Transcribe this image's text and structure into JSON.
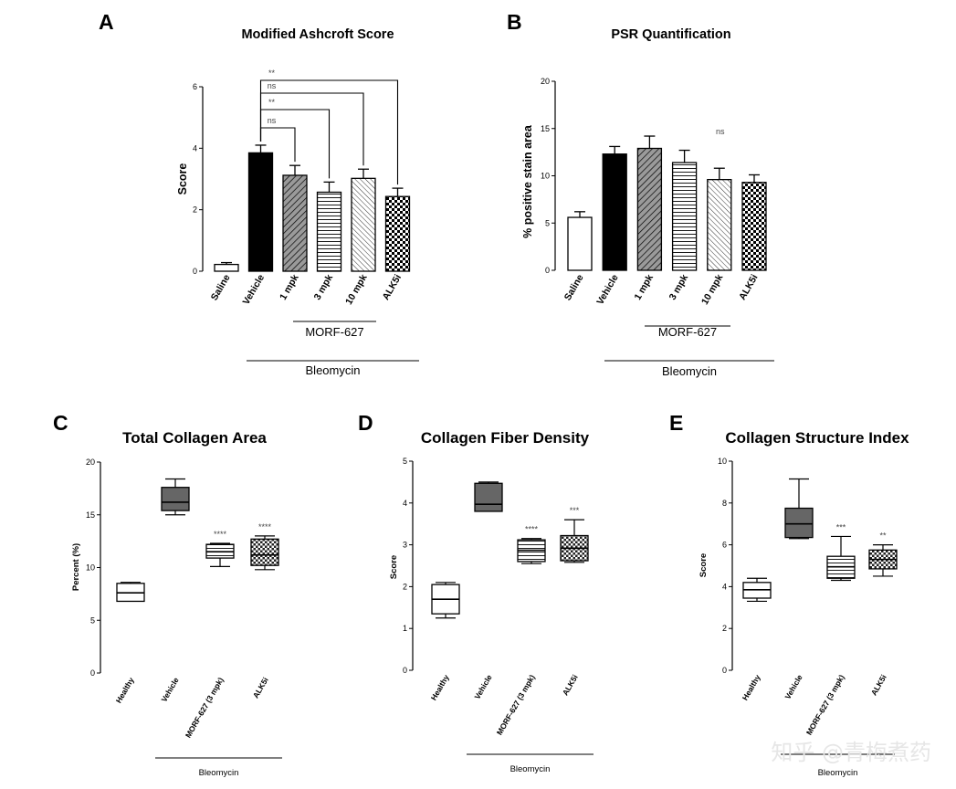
{
  "watermark": "知乎 @青梅煮药",
  "chart_data": [
    {
      "panel": "A",
      "type": "bar",
      "title": "Modified Ashcroft Score",
      "ylabel": "Score",
      "ylim": [
        0,
        6
      ],
      "yticks": [
        "0",
        "2",
        "4",
        "6"
      ],
      "categories": [
        "Saline",
        "Vehicle",
        "1 mpk",
        "3 mpk",
        "10 mpk",
        "ALK5i"
      ],
      "values": [
        0.22,
        3.85,
        3.12,
        2.57,
        3.02,
        2.43
      ],
      "errors": [
        0.06,
        0.25,
        0.32,
        0.33,
        0.3,
        0.27
      ],
      "group_labels": {
        "morf": "MORF-627",
        "bleo": "Bleomycin"
      },
      "comparisons": [
        {
          "to": "1 mpk",
          "label": "ns"
        },
        {
          "to": "3 mpk",
          "label": "**"
        },
        {
          "to": "10 mpk",
          "label": "ns"
        },
        {
          "to": "ALK5i",
          "label": "**"
        }
      ]
    },
    {
      "panel": "B",
      "type": "bar",
      "title": "PSR Quantification",
      "ylabel": "% positive stain area",
      "ylim": [
        0,
        20
      ],
      "yticks": [
        "0",
        "5",
        "10",
        "15",
        "20"
      ],
      "categories": [
        "Saline",
        "Vehicle",
        "1 mpk",
        "3 mpk",
        "10 mpk",
        "ALK5i"
      ],
      "values": [
        5.6,
        12.3,
        12.9,
        11.4,
        9.6,
        9.3
      ],
      "errors": [
        0.6,
        0.8,
        1.3,
        1.3,
        1.2,
        0.8
      ],
      "group_labels": {
        "morf": "MORF-627",
        "bleo": "Bleomycin"
      },
      "annotation": "ns"
    },
    {
      "panel": "C",
      "type": "box",
      "title": "Total Collagen Area",
      "ylabel": "Percent (%)",
      "ylim": [
        0,
        20
      ],
      "yticks": [
        "0",
        "5",
        "10",
        "15",
        "20"
      ],
      "categories": [
        "Healthy",
        "Vehicle",
        "MORF-627 (3 mpk)",
        "ALK5i"
      ],
      "boxes": [
        {
          "min": 6.8,
          "q1": 6.8,
          "median": 7.6,
          "q3": 8.5,
          "max": 8.6
        },
        {
          "min": 15.0,
          "q1": 15.4,
          "median": 16.2,
          "q3": 17.6,
          "max": 18.4
        },
        {
          "min": 10.1,
          "q1": 10.9,
          "median": 11.5,
          "q3": 12.2,
          "max": 12.3
        },
        {
          "min": 9.8,
          "q1": 10.2,
          "median": 11.2,
          "q3": 12.7,
          "max": 13.0
        }
      ],
      "significance": [
        "",
        "",
        "****",
        "****"
      ],
      "group_label": "Bleomycin"
    },
    {
      "panel": "D",
      "type": "box",
      "title": "Collagen Fiber Density",
      "ylabel": "Score",
      "ylim": [
        0,
        5
      ],
      "yticks": [
        "0",
        "1",
        "2",
        "3",
        "4",
        "5"
      ],
      "categories": [
        "Healthy",
        "Vehicle",
        "MORF-627 (3 mpk)",
        "ALK5i"
      ],
      "boxes": [
        {
          "min": 1.25,
          "q1": 1.35,
          "median": 1.7,
          "q3": 2.05,
          "max": 2.1
        },
        {
          "min": 3.8,
          "q1": 3.8,
          "median": 3.97,
          "q3": 4.47,
          "max": 4.5
        },
        {
          "min": 2.55,
          "q1": 2.6,
          "median": 2.87,
          "q3": 3.12,
          "max": 3.15
        },
        {
          "min": 2.58,
          "q1": 2.62,
          "median": 2.92,
          "q3": 3.22,
          "max": 3.6
        }
      ],
      "significance": [
        "",
        "",
        "****",
        "***"
      ],
      "group_label": "Bleomycin"
    },
    {
      "panel": "E",
      "type": "box",
      "title": "Collagen Structure Index",
      "ylabel": "Score",
      "ylim": [
        0,
        10
      ],
      "yticks": [
        "0",
        "2",
        "4",
        "6",
        "8",
        "10"
      ],
      "categories": [
        "Healthy",
        "Vehicle",
        "MORF-627 (3 mpk)",
        "ALK5i"
      ],
      "boxes": [
        {
          "min": 3.3,
          "q1": 3.45,
          "median": 3.85,
          "q3": 4.2,
          "max": 4.4
        },
        {
          "min": 6.3,
          "q1": 6.35,
          "median": 7.0,
          "q3": 7.75,
          "max": 9.15
        },
        {
          "min": 4.3,
          "q1": 4.4,
          "median": 4.95,
          "q3": 5.45,
          "max": 6.4
        },
        {
          "min": 4.5,
          "q1": 4.85,
          "median": 5.3,
          "q3": 5.75,
          "max": 6.0
        }
      ],
      "significance": [
        "",
        "",
        "***",
        "**"
      ],
      "group_label": "Bleomycin"
    }
  ]
}
